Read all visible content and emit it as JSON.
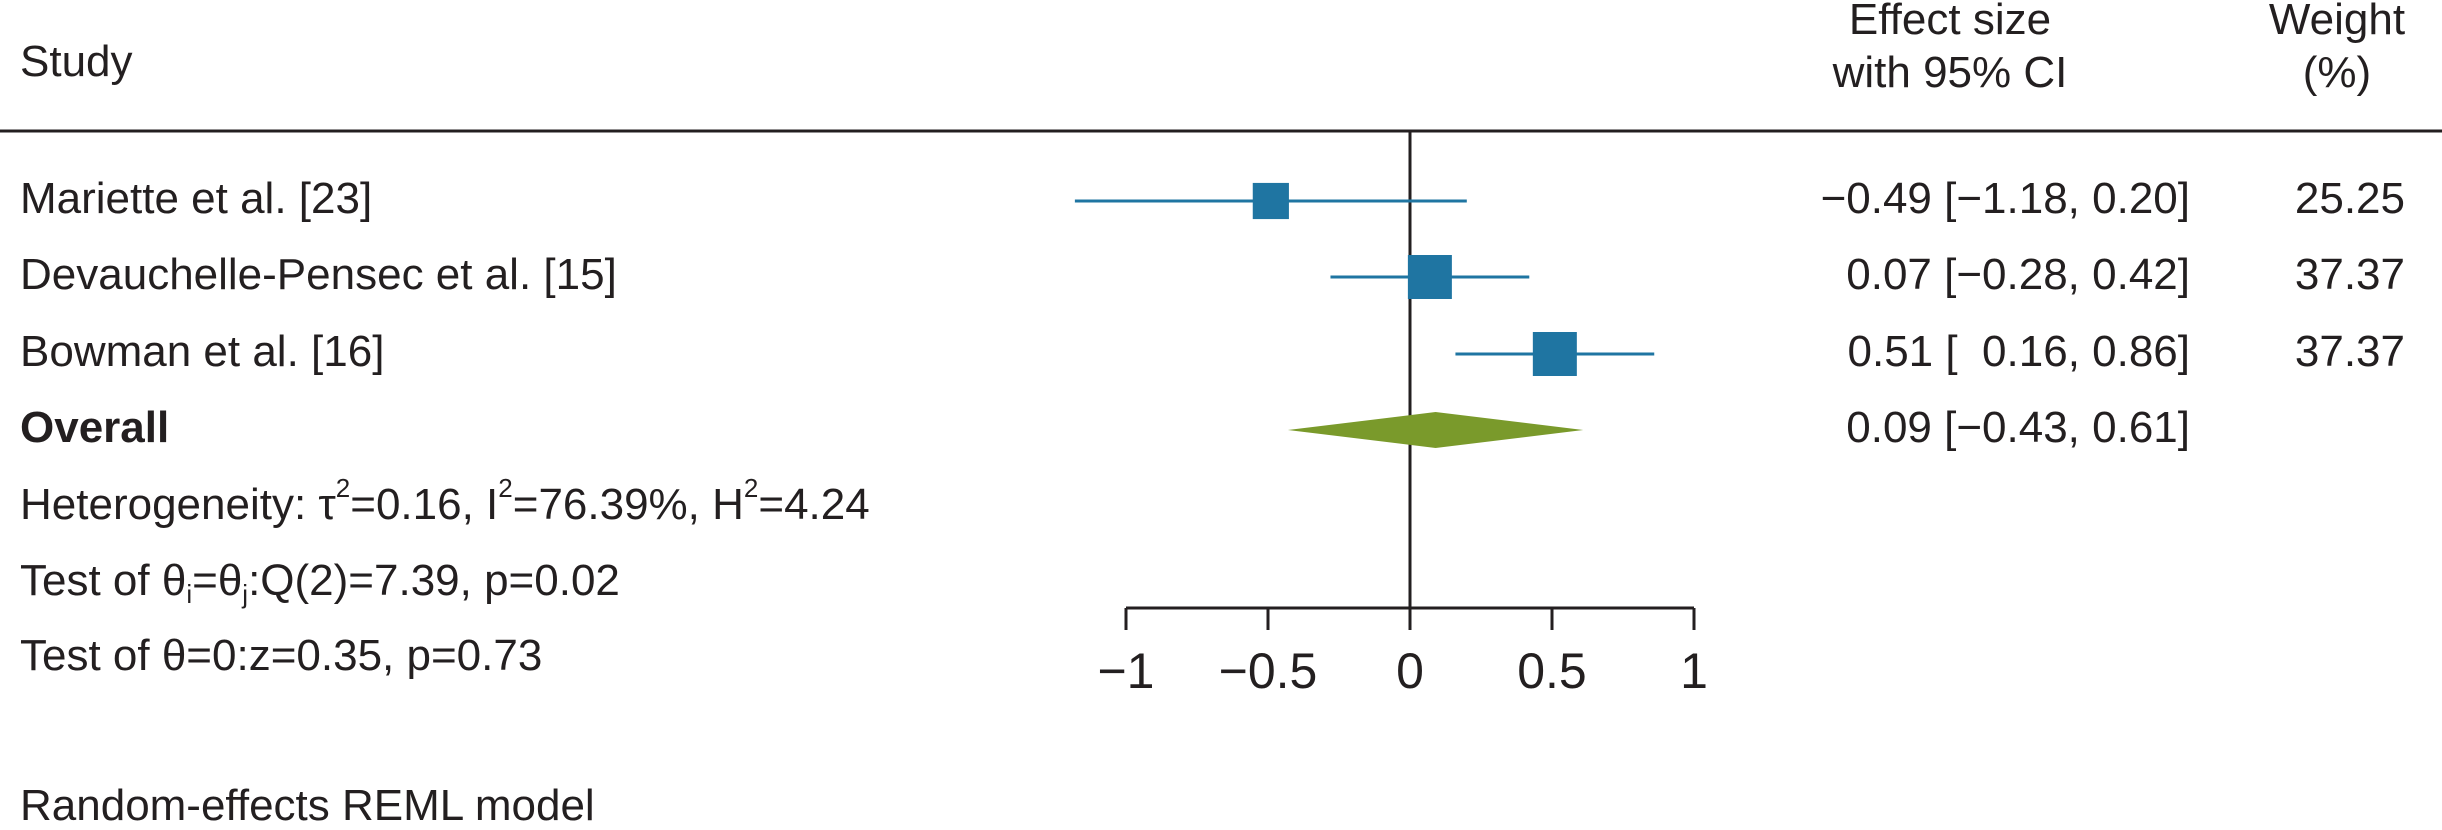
{
  "header": {
    "study_label": "Study",
    "effect_line1": "Effect size",
    "effect_line2": "with 95% CI",
    "weight_line1": "Weight",
    "weight_line2": "(%)"
  },
  "stats": {
    "heterogeneity_prefix": "Heterogeneity: ",
    "tau": "τ",
    "tau_sup": "2",
    "tau_val": "=0.16, I",
    "i_sup": "2",
    "i_val": "=76.39%, H",
    "h_sup": "2",
    "h_val": "=4.24",
    "test1_prefix": "Test of ",
    "theta_i": "θ",
    "sub_i": "i",
    "eq": "=",
    "theta_j": "θ",
    "sub_j": "j",
    "test1_rest": ":Q(2)=7.39, p=0.02",
    "test2": "Test of θ=0:z=0.35, p=0.73",
    "model": "Random-effects REML model"
  },
  "colors": {
    "study_marker": "#1f75a2",
    "overall_diamond": "#7a9a2b",
    "text": "#231f20"
  },
  "chart_data": {
    "type": "forest",
    "xlim": [
      -1,
      1
    ],
    "xticks": [
      -1,
      -0.5,
      0,
      0.5,
      1
    ],
    "xtick_labels": [
      "−1",
      "−0.5",
      "0",
      "0.5",
      "1"
    ],
    "reference_line": 0,
    "studies": [
      {
        "name": "Mariette et al. [23]",
        "effect": -0.49,
        "ci_low": -1.18,
        "ci_high": 0.2,
        "ci_text": "−0.49 [−1.18, 0.20]",
        "weight": 25.25,
        "weight_text": "25.25"
      },
      {
        "name": "Devauchelle-Pensec et al. [15]",
        "effect": 0.07,
        "ci_low": -0.28,
        "ci_high": 0.42,
        "ci_text": "0.07 [−0.28, 0.42]",
        "weight": 37.37,
        "weight_text": "37.37"
      },
      {
        "name": "Bowman et al. [16]",
        "effect": 0.51,
        "ci_low": 0.16,
        "ci_high": 0.86,
        "ci_text": "0.51 [  0.16, 0.86]",
        "weight": 37.37,
        "weight_text": "37.37"
      }
    ],
    "overall": {
      "name": "Overall",
      "effect": 0.09,
      "ci_low": -0.43,
      "ci_high": 0.61,
      "ci_text": "0.09 [−0.43, 0.61]"
    }
  }
}
